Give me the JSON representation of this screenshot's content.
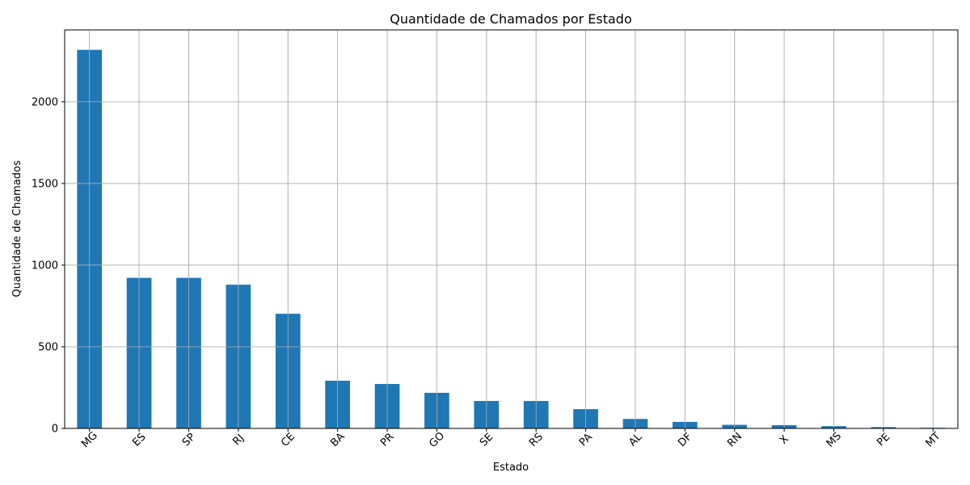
{
  "chart_data": {
    "type": "bar",
    "title": "Quantidade de Chamados por Estado",
    "xlabel": "Estado",
    "ylabel": "Quantidade de Chamados",
    "categories": [
      "MG",
      "ES",
      "SP",
      "RJ",
      "CE",
      "BA",
      "PR",
      "GO",
      "SE",
      "RS",
      "PA",
      "AL",
      "DF",
      "RN",
      "X",
      "MS",
      "PE",
      "MT"
    ],
    "values": [
      2318,
      922,
      922,
      880,
      702,
      292,
      272,
      218,
      168,
      168,
      118,
      58,
      40,
      22,
      20,
      14,
      8,
      4
    ],
    "ylim": [
      0,
      2440
    ],
    "yticks": [
      0,
      500,
      1000,
      1500,
      2000
    ],
    "bar_color": "#1f77b4",
    "grid": true,
    "xtick_rotation": -45
  }
}
